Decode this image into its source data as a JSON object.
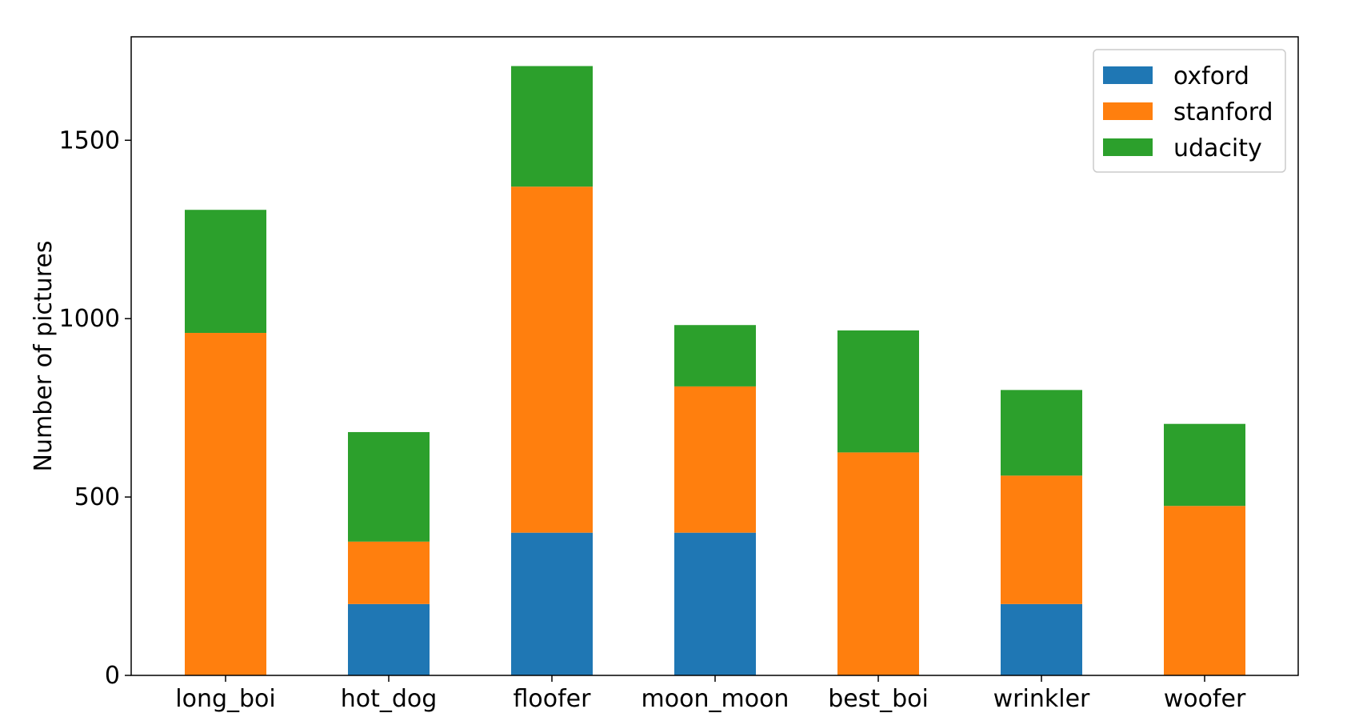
{
  "chart_data": {
    "type": "bar",
    "stacked": true,
    "categories": [
      "long_boi",
      "hot_dog",
      "floofer",
      "moon_moon",
      "best_boi",
      "wrinkler",
      "woofer"
    ],
    "series": [
      {
        "name": "oxford",
        "color": "#1f77b4",
        "values": [
          0,
          200,
          400,
          400,
          0,
          200,
          0
        ]
      },
      {
        "name": "stanford",
        "color": "#ff7f0e",
        "values": [
          960,
          175,
          970,
          410,
          625,
          360,
          475
        ]
      },
      {
        "name": "udacity",
        "color": "#2ca02c",
        "values": [
          345,
          307,
          338,
          172,
          342,
          240,
          230
        ]
      }
    ],
    "title": "",
    "xlabel": "",
    "ylabel": "Number of pictures",
    "ylim": [
      0,
      1790
    ],
    "yticks": [
      0,
      500,
      1000,
      1500
    ],
    "ytick_labels": [
      "0",
      "500",
      "1000",
      "1500"
    ],
    "legend": {
      "position": "top-right"
    },
    "grid": false
  }
}
